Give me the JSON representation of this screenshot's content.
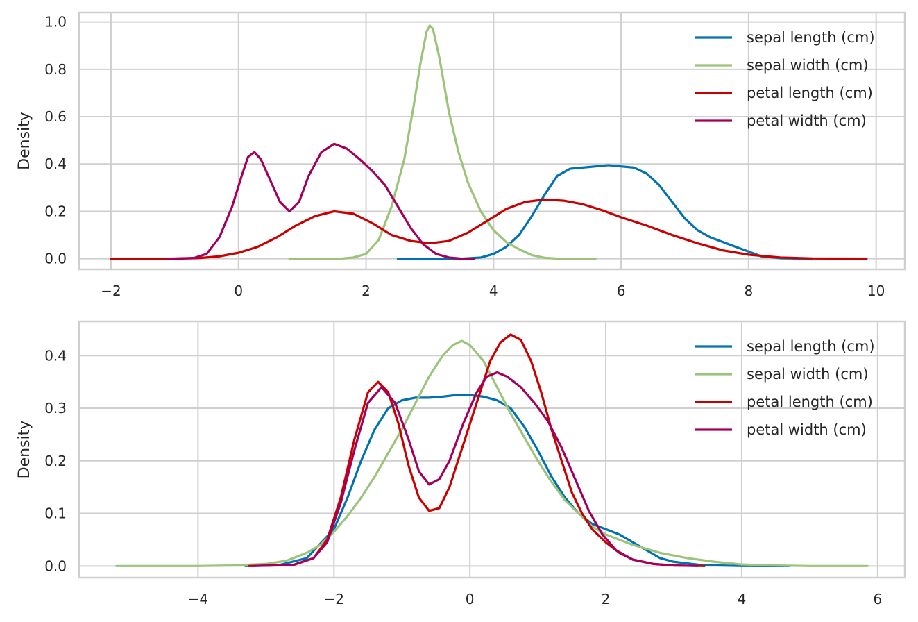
{
  "chart_data": [
    {
      "type": "line",
      "title": "",
      "xlabel": "",
      "ylabel": "Density",
      "xlim": [
        -2.5,
        10.45
      ],
      "ylim": [
        -0.045,
        1.04
      ],
      "xticks": [
        -2,
        0,
        2,
        4,
        6,
        8,
        10
      ],
      "xtick_labels": [
        "−2",
        "0",
        "2",
        "4",
        "6",
        "8",
        "10"
      ],
      "yticks": [
        0.0,
        0.2,
        0.4,
        0.6,
        0.8,
        1.0
      ],
      "ytick_labels": [
        "0.0",
        "0.2",
        "0.4",
        "0.6",
        "0.8",
        "1.0"
      ],
      "grid": true,
      "legend_position": "top-right",
      "series": [
        {
          "name": "sepal length (cm)",
          "color": "#0072B2",
          "points": [
            [
              2.5,
              0
            ],
            [
              3.5,
              0
            ],
            [
              3.8,
              0.005
            ],
            [
              4.0,
              0.02
            ],
            [
              4.2,
              0.05
            ],
            [
              4.4,
              0.1
            ],
            [
              4.6,
              0.18
            ],
            [
              4.8,
              0.27
            ],
            [
              5.0,
              0.35
            ],
            [
              5.2,
              0.38
            ],
            [
              5.4,
              0.385
            ],
            [
              5.6,
              0.39
            ],
            [
              5.8,
              0.395
            ],
            [
              6.0,
              0.39
            ],
            [
              6.2,
              0.385
            ],
            [
              6.4,
              0.36
            ],
            [
              6.6,
              0.31
            ],
            [
              6.8,
              0.24
            ],
            [
              7.0,
              0.17
            ],
            [
              7.2,
              0.12
            ],
            [
              7.4,
              0.09
            ],
            [
              7.6,
              0.07
            ],
            [
              7.8,
              0.05
            ],
            [
              8.0,
              0.03
            ],
            [
              8.2,
              0.01
            ],
            [
              8.5,
              0.002
            ],
            [
              9.0,
              0
            ]
          ]
        },
        {
          "name": "sepal width (cm)",
          "color": "#9BC47A",
          "points": [
            [
              0.8,
              0
            ],
            [
              1.6,
              0
            ],
            [
              1.8,
              0.005
            ],
            [
              2.0,
              0.02
            ],
            [
              2.2,
              0.08
            ],
            [
              2.4,
              0.22
            ],
            [
              2.6,
              0.42
            ],
            [
              2.75,
              0.65
            ],
            [
              2.85,
              0.82
            ],
            [
              2.95,
              0.96
            ],
            [
              3.0,
              0.985
            ],
            [
              3.05,
              0.97
            ],
            [
              3.15,
              0.85
            ],
            [
              3.3,
              0.62
            ],
            [
              3.45,
              0.45
            ],
            [
              3.6,
              0.32
            ],
            [
              3.8,
              0.2
            ],
            [
              4.0,
              0.12
            ],
            [
              4.2,
              0.07
            ],
            [
              4.4,
              0.04
            ],
            [
              4.6,
              0.015
            ],
            [
              4.8,
              0.004
            ],
            [
              5.0,
              0
            ],
            [
              5.6,
              0
            ]
          ]
        },
        {
          "name": "petal length (cm)",
          "color": "#C80000",
          "points": [
            [
              -2.0,
              0
            ],
            [
              -1.0,
              0
            ],
            [
              -0.6,
              0.003
            ],
            [
              -0.3,
              0.01
            ],
            [
              0.0,
              0.025
            ],
            [
              0.3,
              0.05
            ],
            [
              0.6,
              0.09
            ],
            [
              0.9,
              0.14
            ],
            [
              1.2,
              0.18
            ],
            [
              1.5,
              0.2
            ],
            [
              1.8,
              0.19
            ],
            [
              2.1,
              0.15
            ],
            [
              2.4,
              0.1
            ],
            [
              2.7,
              0.075
            ],
            [
              3.0,
              0.065
            ],
            [
              3.3,
              0.075
            ],
            [
              3.6,
              0.11
            ],
            [
              3.9,
              0.16
            ],
            [
              4.2,
              0.21
            ],
            [
              4.5,
              0.24
            ],
            [
              4.8,
              0.25
            ],
            [
              5.1,
              0.245
            ],
            [
              5.4,
              0.23
            ],
            [
              5.7,
              0.205
            ],
            [
              6.0,
              0.175
            ],
            [
              6.4,
              0.14
            ],
            [
              6.8,
              0.1
            ],
            [
              7.2,
              0.065
            ],
            [
              7.6,
              0.035
            ],
            [
              8.0,
              0.017
            ],
            [
              8.5,
              0.005
            ],
            [
              9.0,
              0.001
            ],
            [
              9.85,
              0
            ]
          ]
        },
        {
          "name": "petal width (cm)",
          "color": "#A2005A",
          "points": [
            [
              -1.1,
              0
            ],
            [
              -0.7,
              0.003
            ],
            [
              -0.5,
              0.02
            ],
            [
              -0.3,
              0.09
            ],
            [
              -0.1,
              0.22
            ],
            [
              0.05,
              0.35
            ],
            [
              0.15,
              0.43
            ],
            [
              0.25,
              0.45
            ],
            [
              0.35,
              0.42
            ],
            [
              0.5,
              0.33
            ],
            [
              0.65,
              0.24
            ],
            [
              0.8,
              0.2
            ],
            [
              0.95,
              0.24
            ],
            [
              1.1,
              0.35
            ],
            [
              1.3,
              0.45
            ],
            [
              1.5,
              0.485
            ],
            [
              1.7,
              0.465
            ],
            [
              1.9,
              0.42
            ],
            [
              2.1,
              0.37
            ],
            [
              2.3,
              0.31
            ],
            [
              2.5,
              0.22
            ],
            [
              2.7,
              0.13
            ],
            [
              2.9,
              0.06
            ],
            [
              3.1,
              0.02
            ],
            [
              3.3,
              0.005
            ],
            [
              3.5,
              0
            ],
            [
              3.7,
              0
            ]
          ]
        }
      ]
    },
    {
      "type": "line",
      "title": "",
      "xlabel": "",
      "ylabel": "Density",
      "xlim": [
        -5.75,
        6.4
      ],
      "ylim": [
        -0.022,
        0.465
      ],
      "xticks": [
        -4,
        -2,
        0,
        2,
        4,
        6
      ],
      "xtick_labels": [
        "−4",
        "−2",
        "0",
        "2",
        "4",
        "6"
      ],
      "yticks": [
        0.0,
        0.1,
        0.2,
        0.3,
        0.4
      ],
      "ytick_labels": [
        "0.0",
        "0.1",
        "0.2",
        "0.3",
        "0.4"
      ],
      "grid": true,
      "legend_position": "top-right",
      "series": [
        {
          "name": "sepal length (cm)",
          "color": "#0072B2",
          "points": [
            [
              -3.3,
              0
            ],
            [
              -2.8,
              0.002
            ],
            [
              -2.4,
              0.015
            ],
            [
              -2.0,
              0.07
            ],
            [
              -1.8,
              0.13
            ],
            [
              -1.6,
              0.2
            ],
            [
              -1.4,
              0.26
            ],
            [
              -1.2,
              0.3
            ],
            [
              -1.0,
              0.315
            ],
            [
              -0.8,
              0.32
            ],
            [
              -0.6,
              0.32
            ],
            [
              -0.4,
              0.322
            ],
            [
              -0.2,
              0.325
            ],
            [
              0.0,
              0.325
            ],
            [
              0.2,
              0.322
            ],
            [
              0.4,
              0.315
            ],
            [
              0.6,
              0.3
            ],
            [
              0.8,
              0.265
            ],
            [
              1.0,
              0.22
            ],
            [
              1.2,
              0.17
            ],
            [
              1.4,
              0.13
            ],
            [
              1.6,
              0.1
            ],
            [
              1.8,
              0.08
            ],
            [
              2.0,
              0.07
            ],
            [
              2.2,
              0.06
            ],
            [
              2.4,
              0.045
            ],
            [
              2.6,
              0.03
            ],
            [
              2.8,
              0.015
            ],
            [
              3.0,
              0.008
            ],
            [
              3.4,
              0.002
            ],
            [
              4.0,
              0
            ],
            [
              4.7,
              0
            ]
          ]
        },
        {
          "name": "sepal width (cm)",
          "color": "#9BC47A",
          "points": [
            [
              -5.2,
              0
            ],
            [
              -4.0,
              0
            ],
            [
              -3.5,
              0.001
            ],
            [
              -3.0,
              0.004
            ],
            [
              -2.7,
              0.01
            ],
            [
              -2.4,
              0.025
            ],
            [
              -2.2,
              0.04
            ],
            [
              -2.0,
              0.065
            ],
            [
              -1.8,
              0.095
            ],
            [
              -1.6,
              0.13
            ],
            [
              -1.4,
              0.17
            ],
            [
              -1.2,
              0.215
            ],
            [
              -1.0,
              0.26
            ],
            [
              -0.8,
              0.31
            ],
            [
              -0.6,
              0.36
            ],
            [
              -0.4,
              0.4
            ],
            [
              -0.25,
              0.42
            ],
            [
              -0.12,
              0.428
            ],
            [
              0.0,
              0.42
            ],
            [
              0.2,
              0.39
            ],
            [
              0.4,
              0.34
            ],
            [
              0.6,
              0.29
            ],
            [
              0.8,
              0.245
            ],
            [
              1.0,
              0.2
            ],
            [
              1.2,
              0.16
            ],
            [
              1.4,
              0.125
            ],
            [
              1.6,
              0.1
            ],
            [
              1.8,
              0.075
            ],
            [
              2.0,
              0.06
            ],
            [
              2.4,
              0.04
            ],
            [
              2.8,
              0.025
            ],
            [
              3.2,
              0.015
            ],
            [
              3.6,
              0.008
            ],
            [
              4.0,
              0.003
            ],
            [
              4.5,
              0.001
            ],
            [
              5.0,
              0
            ],
            [
              5.85,
              0
            ]
          ]
        },
        {
          "name": "petal length (cm)",
          "color": "#C80000",
          "points": [
            [
              -3.25,
              0
            ],
            [
              -2.6,
              0.002
            ],
            [
              -2.3,
              0.015
            ],
            [
              -2.1,
              0.05
            ],
            [
              -1.9,
              0.13
            ],
            [
              -1.7,
              0.24
            ],
            [
              -1.5,
              0.33
            ],
            [
              -1.35,
              0.35
            ],
            [
              -1.2,
              0.33
            ],
            [
              -1.05,
              0.27
            ],
            [
              -0.9,
              0.19
            ],
            [
              -0.75,
              0.13
            ],
            [
              -0.6,
              0.105
            ],
            [
              -0.45,
              0.11
            ],
            [
              -0.3,
              0.15
            ],
            [
              -0.15,
              0.21
            ],
            [
              0.0,
              0.27
            ],
            [
              0.15,
              0.33
            ],
            [
              0.3,
              0.39
            ],
            [
              0.45,
              0.425
            ],
            [
              0.6,
              0.44
            ],
            [
              0.75,
              0.43
            ],
            [
              0.9,
              0.39
            ],
            [
              1.05,
              0.33
            ],
            [
              1.2,
              0.26
            ],
            [
              1.35,
              0.2
            ],
            [
              1.5,
              0.14
            ],
            [
              1.65,
              0.1
            ],
            [
              1.8,
              0.07
            ],
            [
              2.0,
              0.045
            ],
            [
              2.2,
              0.025
            ],
            [
              2.4,
              0.012
            ],
            [
              2.7,
              0.004
            ],
            [
              3.0,
              0.001
            ],
            [
              3.45,
              0
            ]
          ]
        },
        {
          "name": "petal width (cm)",
          "color": "#A2005A",
          "points": [
            [
              -3.2,
              0
            ],
            [
              -2.6,
              0.002
            ],
            [
              -2.3,
              0.015
            ],
            [
              -2.1,
              0.045
            ],
            [
              -1.9,
              0.12
            ],
            [
              -1.7,
              0.22
            ],
            [
              -1.5,
              0.31
            ],
            [
              -1.3,
              0.34
            ],
            [
              -1.1,
              0.31
            ],
            [
              -0.9,
              0.24
            ],
            [
              -0.75,
              0.18
            ],
            [
              -0.6,
              0.155
            ],
            [
              -0.45,
              0.165
            ],
            [
              -0.3,
              0.2
            ],
            [
              -0.1,
              0.27
            ],
            [
              0.1,
              0.33
            ],
            [
              0.25,
              0.36
            ],
            [
              0.4,
              0.368
            ],
            [
              0.55,
              0.36
            ],
            [
              0.75,
              0.34
            ],
            [
              0.95,
              0.31
            ],
            [
              1.15,
              0.275
            ],
            [
              1.35,
              0.225
            ],
            [
              1.55,
              0.165
            ],
            [
              1.75,
              0.105
            ],
            [
              1.95,
              0.06
            ],
            [
              2.15,
              0.03
            ],
            [
              2.4,
              0.012
            ],
            [
              2.7,
              0.004
            ],
            [
              3.0,
              0.001
            ],
            [
              3.35,
              0
            ]
          ]
        }
      ]
    }
  ]
}
